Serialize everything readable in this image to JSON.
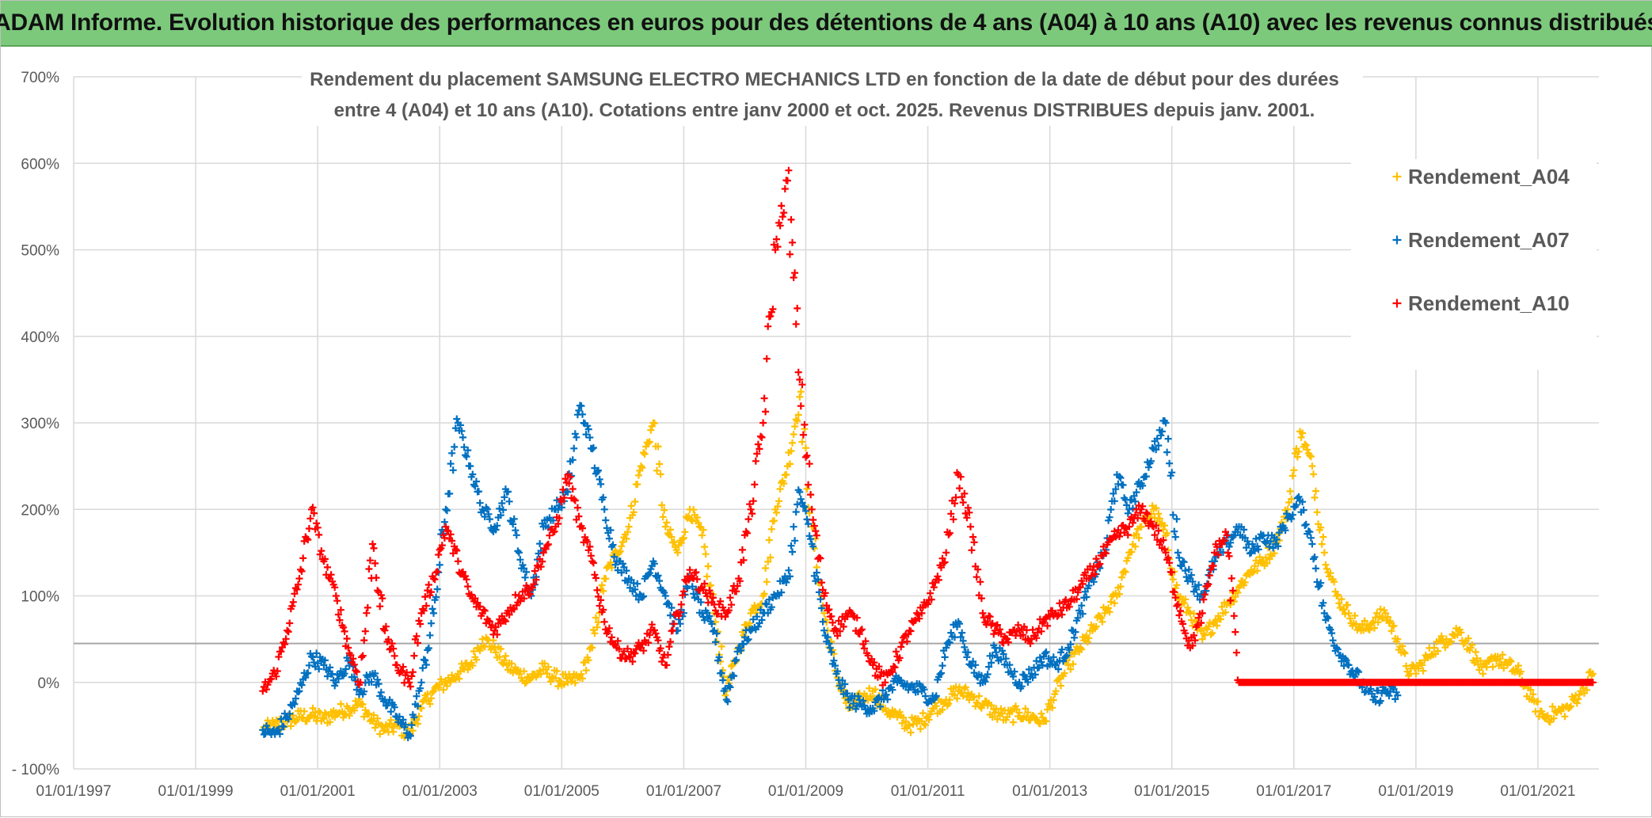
{
  "banner": {
    "title": "ADAM Informe. Evolution historique des performances en euros pour des détentions de 4 ans (A04) à 10 ans (A10) avec les revenus connus distribués"
  },
  "colors": {
    "banner_bg": "#7cc97c",
    "A04": "#ffc000",
    "A07": "#0070c0",
    "A10": "#ff0000",
    "grid": "#d9d9d9",
    "text": "#595959"
  },
  "chart_data": {
    "type": "scatter",
    "title_line1": "Rendement du placement SAMSUNG ELECTRO MECHANICS LTD en fonction de la date de début pour des durées",
    "title_line2": "entre 4 (A04) et 10 ans (A10). Cotations entre janv 2000 et oct. 2025. Revenus DISTRIBUES depuis janv. 2001.",
    "xlabel": "",
    "ylabel": "",
    "x_range": [
      1997.0,
      2022.0
    ],
    "ylim": [
      -100,
      700
    ],
    "y_ticks": [
      -100,
      0,
      100,
      200,
      300,
      400,
      500,
      600,
      700
    ],
    "y_tick_labels": [
      "- 100%",
      "0%",
      "100%",
      "200%",
      "300%",
      "400%",
      "500%",
      "600%",
      "700%"
    ],
    "x_ticks": [
      1997,
      1999,
      2001,
      2003,
      2005,
      2007,
      2009,
      2011,
      2013,
      2015,
      2017,
      2019,
      2021
    ],
    "x_tick_labels": [
      "01/01/1997",
      "01/01/1999",
      "01/01/2001",
      "01/01/2003",
      "01/01/2005",
      "01/01/2007",
      "01/01/2009",
      "01/01/2011",
      "01/01/2013",
      "01/01/2015",
      "01/01/2017",
      "01/01/2019",
      "01/01/2021"
    ],
    "hline": 45,
    "legend_position": "top-right",
    "series": [
      {
        "name": "Rendement_A04",
        "color": "#ffc000",
        "x": [
          2000.1,
          2000.3,
          2000.5,
          2000.7,
          2000.9,
          2001.1,
          2001.3,
          2001.5,
          2001.7,
          2001.9,
          2002.1,
          2002.3,
          2002.5,
          2002.7,
          2002.9,
          2003.1,
          2003.3,
          2003.5,
          2003.7,
          2003.9,
          2004.1,
          2004.3,
          2004.5,
          2004.7,
          2004.9,
          2005.1,
          2005.3,
          2005.5,
          2005.7,
          2005.9,
          2006.1,
          2006.3,
          2006.5,
          2006.7,
          2006.9,
          2007.1,
          2007.3,
          2007.5,
          2007.7,
          2007.9,
          2008.1,
          2008.3,
          2008.5,
          2008.7,
          2008.9,
          2009.1,
          2009.3,
          2009.5,
          2009.7,
          2009.9,
          2010.1,
          2010.3,
          2010.5,
          2010.7,
          2010.9,
          2011.1,
          2011.3,
          2011.5,
          2011.7,
          2011.9,
          2012.1,
          2012.3,
          2012.5,
          2012.7,
          2012.9,
          2013.1,
          2013.3,
          2013.5,
          2013.7,
          2013.9,
          2014.1,
          2014.3,
          2014.5,
          2014.7,
          2014.9,
          2015.1,
          2015.3,
          2015.5,
          2015.7,
          2015.9,
          2016.1,
          2016.3,
          2016.5,
          2016.7,
          2016.9,
          2017.1,
          2017.3,
          2017.5,
          2017.7,
          2017.9,
          2018.1,
          2018.3,
          2018.5,
          2018.7,
          2018.9,
          2019.1,
          2019.3,
          2019.5,
          2019.7,
          2019.9,
          2020.1,
          2020.3,
          2020.5,
          2020.7,
          2020.9,
          2021.1,
          2021.3,
          2021.5,
          2021.7,
          2021.9
        ],
        "y": [
          -55,
          -50,
          -45,
          -40,
          -38,
          -42,
          -35,
          -30,
          -25,
          -45,
          -55,
          -50,
          -60,
          -30,
          -10,
          0,
          10,
          20,
          50,
          40,
          20,
          10,
          5,
          15,
          5,
          0,
          5,
          40,
          120,
          150,
          180,
          250,
          300,
          180,
          150,
          200,
          170,
          80,
          -10,
          40,
          80,
          100,
          200,
          250,
          330,
          180,
          80,
          10,
          -30,
          -20,
          -10,
          -30,
          -40,
          -50,
          -45,
          -30,
          -20,
          -10,
          -15,
          -25,
          -35,
          -40,
          -35,
          -40,
          -45,
          -10,
          20,
          40,
          60,
          80,
          100,
          150,
          180,
          200,
          170,
          100,
          80,
          50,
          70,
          90,
          110,
          130,
          140,
          160,
          200,
          290,
          250,
          150,
          100,
          80,
          60,
          70,
          80,
          50,
          10,
          20,
          40,
          50,
          60,
          40,
          10,
          30,
          20,
          10,
          -20,
          -40,
          -35,
          -30,
          -10,
          10
        ]
      },
      {
        "name": "Rendement_A07",
        "color": "#0070c0",
        "x": [
          2000.1,
          2000.3,
          2000.5,
          2000.7,
          2000.9,
          2001.1,
          2001.3,
          2001.5,
          2001.7,
          2001.9,
          2002.1,
          2002.3,
          2002.5,
          2002.7,
          2002.9,
          2003.1,
          2003.3,
          2003.5,
          2003.7,
          2003.9,
          2004.1,
          2004.3,
          2004.5,
          2004.7,
          2004.9,
          2005.1,
          2005.3,
          2005.5,
          2005.7,
          2005.9,
          2006.1,
          2006.3,
          2006.5,
          2006.7,
          2006.9,
          2007.1,
          2007.3,
          2007.5,
          2007.7,
          2007.9,
          2008.1,
          2008.3,
          2008.5,
          2008.7,
          2008.9,
          2009.1,
          2009.3,
          2009.5,
          2009.7,
          2009.9,
          2010.1,
          2010.3,
          2010.5,
          2010.7,
          2010.9,
          2011.1,
          2011.3,
          2011.5,
          2011.7,
          2011.9,
          2012.1,
          2012.3,
          2012.5,
          2012.7,
          2012.9,
          2013.1,
          2013.3,
          2013.5,
          2013.7,
          2013.9,
          2014.1,
          2014.3,
          2014.5,
          2014.7,
          2014.9,
          2015.1,
          2015.3,
          2015.5,
          2015.7,
          2015.9,
          2016.1,
          2016.3,
          2016.5,
          2016.7,
          2016.9,
          2017.1,
          2017.3,
          2017.5,
          2017.7,
          2017.9,
          2018.1,
          2018.3,
          2018.5,
          2018.7
        ],
        "y": [
          -55,
          -60,
          -40,
          -10,
          30,
          20,
          0,
          25,
          -10,
          10,
          -20,
          -40,
          -60,
          0,
          80,
          200,
          300,
          250,
          200,
          180,
          220,
          150,
          100,
          180,
          200,
          220,
          320,
          270,
          200,
          140,
          120,
          100,
          140,
          100,
          60,
          120,
          80,
          60,
          -20,
          40,
          60,
          80,
          100,
          120,
          220,
          160,
          60,
          10,
          -20,
          -25,
          -30,
          -15,
          0,
          -5,
          -10,
          -20,
          40,
          70,
          20,
          0,
          40,
          20,
          0,
          10,
          30,
          20,
          40,
          80,
          120,
          150,
          240,
          200,
          230,
          270,
          300,
          150,
          120,
          100,
          140,
          160,
          180,
          150,
          170,
          160,
          190,
          210,
          160,
          80,
          40,
          20,
          0,
          -20,
          -10,
          -15
        ]
      },
      {
        "name": "Rendement_A10",
        "color": "#ff0000",
        "x": [
          2000.1,
          2000.3,
          2000.5,
          2000.7,
          2000.9,
          2001.1,
          2001.3,
          2001.5,
          2001.7,
          2001.9,
          2002.1,
          2002.3,
          2002.5,
          2002.7,
          2002.9,
          2003.1,
          2003.3,
          2003.5,
          2003.7,
          2003.9,
          2004.1,
          2004.3,
          2004.5,
          2004.7,
          2004.9,
          2005.1,
          2005.3,
          2005.5,
          2005.7,
          2005.9,
          2006.1,
          2006.3,
          2006.5,
          2006.7,
          2006.9,
          2007.1,
          2007.3,
          2007.5,
          2007.7,
          2007.9,
          2008.1,
          2008.3,
          2008.5,
          2008.7,
          2008.9,
          2009.1,
          2009.3,
          2009.5,
          2009.7,
          2009.9,
          2010.1,
          2010.3,
          2010.5,
          2010.7,
          2010.9,
          2011.1,
          2011.3,
          2011.5,
          2011.7,
          2011.9,
          2012.1,
          2012.3,
          2012.5,
          2012.7,
          2012.9,
          2013.1,
          2013.3,
          2013.5,
          2013.7,
          2013.9,
          2014.1,
          2014.3,
          2014.5,
          2014.7,
          2014.9,
          2015.1,
          2015.3,
          2015.5,
          2015.7,
          2015.9,
          2016.1,
          2016.3,
          2016.5,
          2016.7,
          2016.9,
          2017.1,
          2017.3,
          2017.5,
          2017.7,
          2017.9,
          2018.1,
          2018.3,
          2018.5,
          2018.7,
          2018.9,
          2019.1,
          2019.3,
          2019.5,
          2019.7,
          2019.9,
          2020.1,
          2020.3,
          2020.5,
          2020.7,
          2020.9,
          2021.1,
          2021.3,
          2021.5,
          2021.7,
          2021.9
        ],
        "y": [
          -10,
          10,
          60,
          120,
          200,
          140,
          100,
          40,
          0,
          160,
          60,
          20,
          0,
          80,
          120,
          180,
          140,
          100,
          80,
          60,
          80,
          100,
          110,
          150,
          180,
          240,
          180,
          140,
          70,
          40,
          30,
          40,
          60,
          20,
          80,
          130,
          110,
          90,
          80,
          120,
          200,
          300,
          500,
          580,
          350,
          200,
          100,
          60,
          80,
          60,
          20,
          0,
          30,
          60,
          80,
          110,
          150,
          240,
          180,
          80,
          60,
          50,
          60,
          50,
          70,
          80,
          90,
          110,
          130,
          150,
          170,
          180,
          200,
          180,
          150,
          90,
          40,
          80,
          150,
          170,
          0,
          0,
          0,
          0,
          0,
          0,
          0,
          0,
          0,
          0,
          0,
          0,
          0,
          0,
          0,
          0,
          0,
          0,
          0,
          0,
          0,
          0,
          0,
          0,
          0,
          0,
          0,
          0,
          0,
          0
        ]
      }
    ]
  }
}
